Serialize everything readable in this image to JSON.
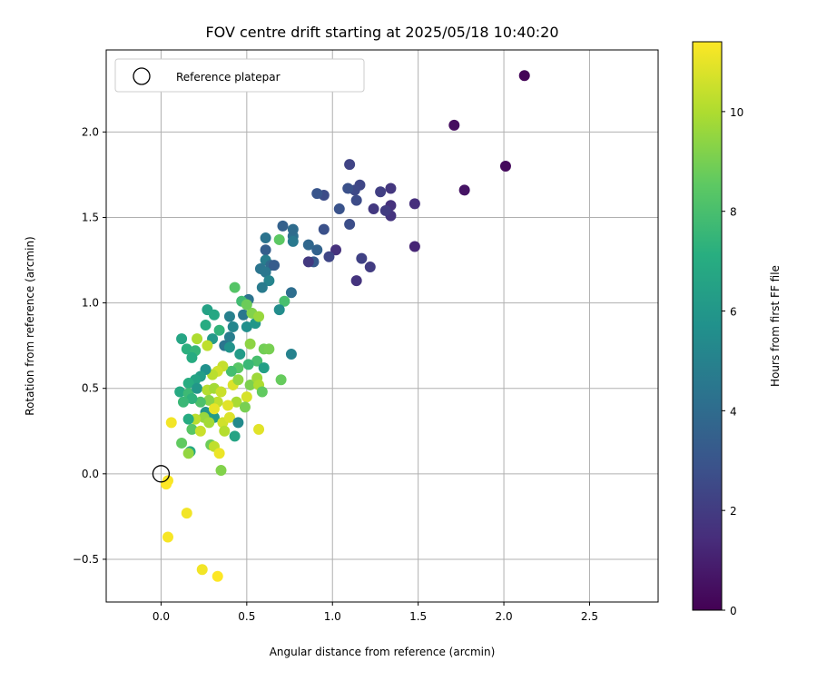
{
  "chart_data": {
    "type": "scatter",
    "title": "FOV centre drift starting at 2025/05/18 10:40:20",
    "xlabel": "Angular distance from reference (arcmin)",
    "ylabel": "Rotation from reference (arcmin)",
    "xlim": [
      -0.32,
      2.9
    ],
    "ylim": [
      -0.75,
      2.48
    ],
    "xticks": [
      0.0,
      0.5,
      1.0,
      1.5,
      2.0,
      2.5
    ],
    "xtick_labels": [
      "0.0",
      "0.5",
      "1.0",
      "1.5",
      "2.0",
      "2.5"
    ],
    "yticks": [
      -0.5,
      0.0,
      0.5,
      1.0,
      1.5,
      2.0
    ],
    "ytick_labels": [
      "−0.5",
      "0.0",
      "0.5",
      "1.0",
      "1.5",
      "2.0"
    ],
    "grid": true,
    "legend": {
      "placement": "top-left",
      "entries": [
        "Reference platepar"
      ]
    },
    "reference_point": {
      "x": 0.0,
      "y": 0.0,
      "label": "Reference platepar"
    },
    "colorbar": {
      "label": "Hours from first FF file",
      "colormap": "viridis",
      "range": [
        0,
        11.4
      ],
      "ticks": [
        0,
        2,
        4,
        6,
        8,
        10
      ],
      "tick_labels": [
        "0",
        "2",
        "4",
        "6",
        "8",
        "10"
      ]
    },
    "points": [
      [
        2.12,
        2.33,
        0.1
      ],
      [
        1.71,
        2.04,
        0.4
      ],
      [
        2.01,
        1.8,
        0.3
      ],
      [
        1.77,
        1.66,
        0.6
      ],
      [
        1.48,
        1.58,
        1.5
      ],
      [
        1.48,
        1.33,
        1.2
      ],
      [
        1.34,
        1.67,
        1.8
      ],
      [
        1.34,
        1.57,
        1.6
      ],
      [
        1.34,
        1.51,
        1.7
      ],
      [
        1.31,
        1.54,
        2.0
      ],
      [
        1.28,
        1.65,
        2.1
      ],
      [
        1.24,
        1.55,
        1.9
      ],
      [
        1.16,
        1.69,
        2.4
      ],
      [
        1.13,
        1.66,
        2.5
      ],
      [
        1.1,
        1.81,
        2.3
      ],
      [
        1.14,
        1.6,
        2.6
      ],
      [
        1.09,
        1.67,
        2.8
      ],
      [
        1.1,
        1.46,
        2.7
      ],
      [
        1.04,
        1.55,
        2.9
      ],
      [
        0.95,
        1.63,
        2.6
      ],
      [
        0.91,
        1.64,
        3.0
      ],
      [
        0.95,
        1.43,
        2.8
      ],
      [
        1.17,
        1.26,
        2.2
      ],
      [
        1.22,
        1.21,
        2.0
      ],
      [
        1.14,
        1.13,
        1.7
      ],
      [
        1.02,
        1.31,
        1.6
      ],
      [
        0.98,
        1.27,
        2.4
      ],
      [
        0.89,
        1.24,
        3.2
      ],
      [
        0.86,
        1.24,
        1.9
      ],
      [
        0.91,
        1.31,
        3.6
      ],
      [
        0.86,
        1.34,
        3.8
      ],
      [
        0.77,
        1.39,
        4.2
      ],
      [
        0.77,
        1.36,
        4.6
      ],
      [
        0.77,
        1.43,
        4.0
      ],
      [
        0.71,
        1.45,
        3.5
      ],
      [
        0.69,
        1.37,
        8.5
      ],
      [
        0.61,
        1.38,
        4.3
      ],
      [
        0.61,
        1.31,
        3.4
      ],
      [
        0.61,
        1.25,
        4.8
      ],
      [
        0.58,
        1.2,
        4.4
      ],
      [
        0.64,
        1.22,
        3.9
      ],
      [
        0.66,
        1.22,
        3.3
      ],
      [
        0.61,
        1.18,
        4.5
      ],
      [
        0.63,
        1.13,
        5.1
      ],
      [
        0.59,
        1.09,
        4.7
      ],
      [
        0.76,
        1.06,
        4.1
      ],
      [
        0.72,
        1.01,
        8.0
      ],
      [
        0.69,
        0.96,
        5.5
      ],
      [
        0.76,
        0.7,
        5.0
      ],
      [
        0.7,
        0.55,
        8.7
      ],
      [
        0.51,
        1.02,
        4.3
      ],
      [
        0.48,
        0.93,
        4.5
      ],
      [
        0.4,
        0.92,
        4.9
      ],
      [
        0.42,
        0.86,
        5.2
      ],
      [
        0.4,
        0.8,
        4.8
      ],
      [
        0.37,
        0.75,
        4.4
      ],
      [
        0.5,
        0.86,
        5.6
      ],
      [
        0.55,
        0.88,
        6.0
      ],
      [
        0.53,
        0.94,
        9.2
      ],
      [
        0.57,
        0.92,
        9.6
      ],
      [
        0.47,
        1.01,
        7.8
      ],
      [
        0.43,
        1.09,
        8.3
      ],
      [
        0.5,
        0.99,
        8.8
      ],
      [
        0.27,
        0.96,
        6.5
      ],
      [
        0.31,
        0.93,
        6.8
      ],
      [
        0.26,
        0.87,
        7.0
      ],
      [
        0.34,
        0.84,
        7.4
      ],
      [
        0.3,
        0.79,
        6.1
      ],
      [
        0.12,
        0.79,
        6.7
      ],
      [
        0.21,
        0.79,
        10.0
      ],
      [
        0.27,
        0.75,
        10.3
      ],
      [
        0.15,
        0.73,
        7.2
      ],
      [
        0.2,
        0.72,
        7.5
      ],
      [
        0.18,
        0.68,
        7.0
      ],
      [
        0.4,
        0.74,
        5.8
      ],
      [
        0.46,
        0.7,
        6.2
      ],
      [
        0.52,
        0.76,
        9.4
      ],
      [
        0.6,
        0.73,
        8.9
      ],
      [
        0.63,
        0.73,
        9.0
      ],
      [
        0.56,
        0.66,
        8.0
      ],
      [
        0.51,
        0.64,
        7.6
      ],
      [
        0.45,
        0.62,
        8.4
      ],
      [
        0.41,
        0.6,
        7.9
      ],
      [
        0.6,
        0.62,
        6.4
      ],
      [
        0.36,
        0.63,
        10.4
      ],
      [
        0.33,
        0.6,
        10.6
      ],
      [
        0.3,
        0.58,
        10.2
      ],
      [
        0.26,
        0.61,
        5.7
      ],
      [
        0.23,
        0.57,
        6.3
      ],
      [
        0.2,
        0.55,
        6.6
      ],
      [
        0.16,
        0.53,
        7.1
      ],
      [
        0.11,
        0.48,
        6.9
      ],
      [
        0.16,
        0.47,
        7.7
      ],
      [
        0.21,
        0.5,
        6.0
      ],
      [
        0.27,
        0.49,
        10.1
      ],
      [
        0.31,
        0.5,
        9.8
      ],
      [
        0.35,
        0.48,
        10.5
      ],
      [
        0.42,
        0.52,
        10.8
      ],
      [
        0.45,
        0.55,
        9.5
      ],
      [
        0.52,
        0.52,
        9.1
      ],
      [
        0.56,
        0.56,
        9.7
      ],
      [
        0.57,
        0.52,
        10.0
      ],
      [
        0.59,
        0.48,
        8.6
      ],
      [
        0.5,
        0.45,
        10.7
      ],
      [
        0.44,
        0.42,
        9.9
      ],
      [
        0.39,
        0.4,
        10.9
      ],
      [
        0.33,
        0.42,
        10.3
      ],
      [
        0.28,
        0.43,
        9.3
      ],
      [
        0.23,
        0.42,
        8.1
      ],
      [
        0.18,
        0.44,
        7.3
      ],
      [
        0.13,
        0.42,
        7.6
      ],
      [
        0.26,
        0.36,
        5.9
      ],
      [
        0.31,
        0.33,
        6.2
      ],
      [
        0.36,
        0.3,
        10.6
      ],
      [
        0.4,
        0.33,
        10.8
      ],
      [
        0.45,
        0.3,
        5.4
      ],
      [
        0.49,
        0.39,
        9.0
      ],
      [
        0.43,
        0.22,
        6.6
      ],
      [
        0.37,
        0.25,
        10.1
      ],
      [
        0.31,
        0.38,
        11.0
      ],
      [
        0.25,
        0.33,
        9.6
      ],
      [
        0.2,
        0.32,
        10.2
      ],
      [
        0.16,
        0.32,
        7.0
      ],
      [
        0.18,
        0.26,
        8.4
      ],
      [
        0.23,
        0.25,
        10.5
      ],
      [
        0.28,
        0.3,
        9.8
      ],
      [
        0.06,
        0.3,
        11.2
      ],
      [
        0.12,
        0.18,
        8.6
      ],
      [
        0.17,
        0.13,
        6.9
      ],
      [
        0.16,
        0.12,
        9.5
      ],
      [
        0.29,
        0.17,
        8.8
      ],
      [
        0.31,
        0.16,
        10.3
      ],
      [
        0.34,
        0.12,
        11.1
      ],
      [
        0.35,
        0.02,
        9.2
      ],
      [
        0.57,
        0.26,
        10.9
      ],
      [
        0.04,
        -0.04,
        11.3
      ],
      [
        0.03,
        -0.06,
        11.4
      ],
      [
        0.15,
        -0.23,
        11.2
      ],
      [
        0.04,
        -0.37,
        11.3
      ],
      [
        0.24,
        -0.56,
        11.2
      ],
      [
        0.33,
        -0.6,
        11.4
      ]
    ]
  }
}
